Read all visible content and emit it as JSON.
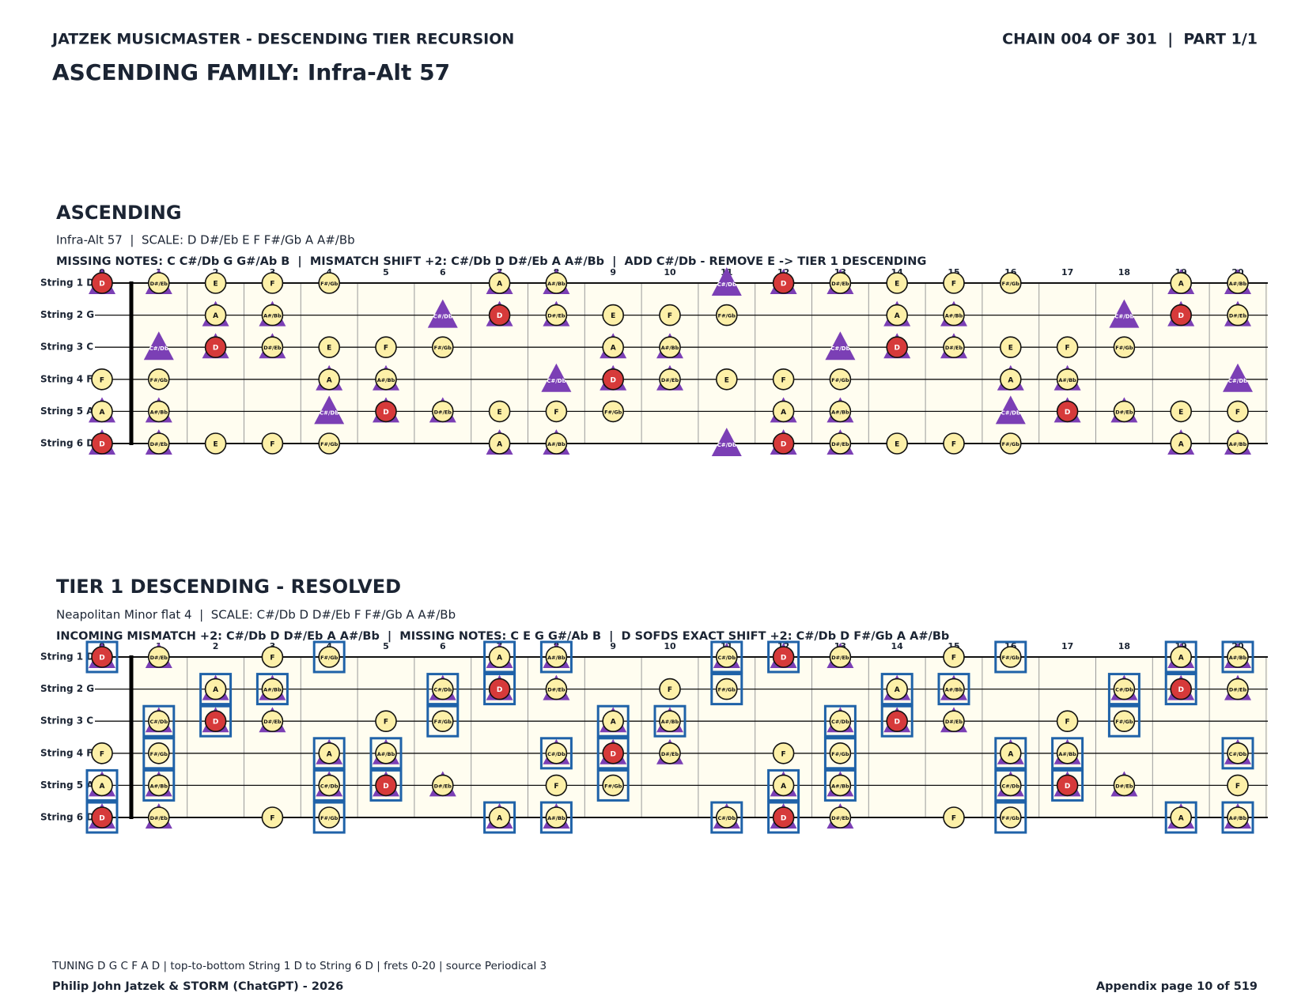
{
  "header": {
    "left": "JATZEK MUSICMASTER - DESCENDING TIER RECURSION",
    "right": "CHAIN 004 OF 301  |  PART 1/1",
    "title": "ASCENDING FAMILY: Infra-Alt 57"
  },
  "panels": [
    {
      "title": "ASCENDING",
      "subtitle": "Infra-Alt 57  |  SCALE: D D#/Eb E F F#/Gb A A#/Bb",
      "info": "MISSING NOTES: C C#/Db G G#/Ab B  |  MISMATCH SHIFT +2: C#/Db D D#/Eb A A#/Bb  |  ADD C#/Db - REMOVE E -> TIER 1 DESCENDING",
      "frets": [
        0,
        1,
        2,
        3,
        4,
        5,
        6,
        7,
        8,
        9,
        10,
        11,
        12,
        13,
        14,
        15,
        16,
        17,
        18,
        19,
        20
      ],
      "strings": [
        {
          "label": "String 1 D",
          "notes": [
            {
              "note": "D",
              "root": true,
              "tri": true
            },
            {
              "note": "D#/Eb",
              "tri": true
            },
            {
              "note": "E"
            },
            {
              "note": "F"
            },
            {
              "note": "F#/Gb"
            },
            null,
            null,
            {
              "note": "A",
              "tri": true
            },
            {
              "note": "A#/Bb",
              "tri": true
            },
            null,
            null,
            {
              "note": "C#/Db",
              "shape": "triangle"
            },
            {
              "note": "D",
              "root": true,
              "tri": true
            },
            {
              "note": "D#/Eb",
              "tri": true
            },
            {
              "note": "E"
            },
            {
              "note": "F"
            },
            {
              "note": "F#/Gb"
            },
            null,
            null,
            {
              "note": "A",
              "tri": true
            },
            {
              "note": "A#/Bb",
              "tri": true
            }
          ]
        },
        {
          "label": "String 2 G",
          "notes": [
            null,
            null,
            {
              "note": "A",
              "tri": true
            },
            {
              "note": "A#/Bb",
              "tri": true
            },
            null,
            null,
            {
              "note": "C#/Db",
              "shape": "triangle"
            },
            {
              "note": "D",
              "root": true,
              "tri": true
            },
            {
              "note": "D#/Eb",
              "tri": true
            },
            {
              "note": "E"
            },
            {
              "note": "F"
            },
            {
              "note": "F#/Gb"
            },
            null,
            null,
            {
              "note": "A",
              "tri": true
            },
            {
              "note": "A#/Bb",
              "tri": true
            },
            null,
            null,
            {
              "note": "C#/Db",
              "shape": "triangle"
            },
            {
              "note": "D",
              "root": true,
              "tri": true
            },
            {
              "note": "D#/Eb",
              "tri": true
            }
          ]
        },
        {
          "label": "String 3 C",
          "notes": [
            null,
            {
              "note": "C#/Db",
              "shape": "triangle"
            },
            {
              "note": "D",
              "root": true,
              "tri": true
            },
            {
              "note": "D#/Eb",
              "tri": true
            },
            {
              "note": "E"
            },
            {
              "note": "F"
            },
            {
              "note": "F#/Gb"
            },
            null,
            null,
            {
              "note": "A",
              "tri": true
            },
            {
              "note": "A#/Bb",
              "tri": true
            },
            null,
            null,
            {
              "note": "C#/Db",
              "shape": "triangle"
            },
            {
              "note": "D",
              "root": true,
              "tri": true
            },
            {
              "note": "D#/Eb",
              "tri": true
            },
            {
              "note": "E"
            },
            {
              "note": "F"
            },
            {
              "note": "F#/Gb"
            },
            null,
            null
          ]
        },
        {
          "label": "String 4 F",
          "notes": [
            {
              "note": "F"
            },
            {
              "note": "F#/Gb"
            },
            null,
            null,
            {
              "note": "A",
              "tri": true
            },
            {
              "note": "A#/Bb",
              "tri": true
            },
            null,
            null,
            {
              "note": "C#/Db",
              "shape": "triangle"
            },
            {
              "note": "D",
              "root": true,
              "tri": true
            },
            {
              "note": "D#/Eb",
              "tri": true
            },
            {
              "note": "E"
            },
            {
              "note": "F"
            },
            {
              "note": "F#/Gb"
            },
            null,
            null,
            {
              "note": "A",
              "tri": true
            },
            {
              "note": "A#/Bb",
              "tri": true
            },
            null,
            null,
            {
              "note": "C#/Db",
              "shape": "triangle"
            }
          ]
        },
        {
          "label": "String 5 A",
          "notes": [
            {
              "note": "A",
              "tri": true
            },
            {
              "note": "A#/Bb",
              "tri": true
            },
            null,
            null,
            {
              "note": "C#/Db",
              "shape": "triangle"
            },
            {
              "note": "D",
              "root": true,
              "tri": true
            },
            {
              "note": "D#/Eb",
              "tri": true
            },
            {
              "note": "E"
            },
            {
              "note": "F"
            },
            {
              "note": "F#/Gb"
            },
            null,
            null,
            {
              "note": "A",
              "tri": true
            },
            {
              "note": "A#/Bb",
              "tri": true
            },
            null,
            null,
            {
              "note": "C#/Db",
              "shape": "triangle"
            },
            {
              "note": "D",
              "root": true,
              "tri": true
            },
            {
              "note": "D#/Eb",
              "tri": true
            },
            {
              "note": "E"
            },
            {
              "note": "F"
            }
          ]
        },
        {
          "label": "String 6 D",
          "notes": [
            {
              "note": "D",
              "root": true,
              "tri": true
            },
            {
              "note": "D#/Eb",
              "tri": true
            },
            {
              "note": "E"
            },
            {
              "note": "F"
            },
            {
              "note": "F#/Gb"
            },
            null,
            null,
            {
              "note": "A",
              "tri": true
            },
            {
              "note": "A#/Bb",
              "tri": true
            },
            null,
            null,
            {
              "note": "C#/Db",
              "shape": "triangle"
            },
            {
              "note": "D",
              "root": true,
              "tri": true
            },
            {
              "note": "D#/Eb",
              "tri": true
            },
            {
              "note": "E"
            },
            {
              "note": "F"
            },
            {
              "note": "F#/Gb"
            },
            null,
            null,
            {
              "note": "A",
              "tri": true
            },
            {
              "note": "A#/Bb",
              "tri": true
            }
          ]
        }
      ]
    },
    {
      "title": "TIER 1 DESCENDING - RESOLVED",
      "subtitle": "Neapolitan Minor flat 4  |  SCALE: C#/Db D D#/Eb F F#/Gb A A#/Bb",
      "info": "INCOMING MISMATCH +2: C#/Db D D#/Eb A A#/Bb  |  MISSING NOTES: C E G G#/Ab B  |  D SOFDS EXACT SHIFT +2: C#/Db D F#/Gb A A#/Bb",
      "frets": [
        0,
        1,
        2,
        3,
        4,
        5,
        6,
        7,
        8,
        9,
        10,
        11,
        12,
        13,
        14,
        15,
        16,
        17,
        18,
        19,
        20
      ],
      "strings": [
        {
          "label": "String 1 D",
          "notes": [
            {
              "note": "D",
              "root": true,
              "tri": true,
              "box": true
            },
            {
              "note": "D#/Eb",
              "tri": true
            },
            null,
            {
              "note": "F"
            },
            {
              "note": "F#/Gb",
              "box": true
            },
            null,
            null,
            {
              "note": "A",
              "tri": true,
              "box": true
            },
            {
              "note": "A#/Bb",
              "tri": true,
              "box": true
            },
            null,
            null,
            {
              "note": "C#/Db",
              "tri": true,
              "box": true
            },
            {
              "note": "D",
              "root": true,
              "tri": true,
              "box": true
            },
            {
              "note": "D#/Eb",
              "tri": true
            },
            null,
            {
              "note": "F"
            },
            {
              "note": "F#/Gb",
              "box": true
            },
            null,
            null,
            {
              "note": "A",
              "tri": true,
              "box": true
            },
            {
              "note": "A#/Bb",
              "tri": true,
              "box": true
            }
          ]
        },
        {
          "label": "String 2 G",
          "notes": [
            null,
            null,
            {
              "note": "A",
              "tri": true,
              "box": true
            },
            {
              "note": "A#/Bb",
              "tri": true,
              "box": true
            },
            null,
            null,
            {
              "note": "C#/Db",
              "tri": true,
              "box": true
            },
            {
              "note": "D",
              "root": true,
              "tri": true,
              "box": true
            },
            {
              "note": "D#/Eb",
              "tri": true
            },
            null,
            {
              "note": "F"
            },
            {
              "note": "F#/Gb",
              "box": true
            },
            null,
            null,
            {
              "note": "A",
              "tri": true,
              "box": true
            },
            {
              "note": "A#/Bb",
              "tri": true,
              "box": true
            },
            null,
            null,
            {
              "note": "C#/Db",
              "tri": true,
              "box": true
            },
            {
              "note": "D",
              "root": true,
              "tri": true,
              "box": true
            },
            {
              "note": "D#/Eb",
              "tri": true
            }
          ]
        },
        {
          "label": "String 3 C",
          "notes": [
            null,
            {
              "note": "C#/Db",
              "tri": true,
              "box": true
            },
            {
              "note": "D",
              "root": true,
              "tri": true,
              "box": true
            },
            {
              "note": "D#/Eb",
              "tri": true
            },
            null,
            {
              "note": "F"
            },
            {
              "note": "F#/Gb",
              "box": true
            },
            null,
            null,
            {
              "note": "A",
              "tri": true,
              "box": true
            },
            {
              "note": "A#/Bb",
              "tri": true,
              "box": true
            },
            null,
            null,
            {
              "note": "C#/Db",
              "tri": true,
              "box": true
            },
            {
              "note": "D",
              "root": true,
              "tri": true,
              "box": true
            },
            {
              "note": "D#/Eb",
              "tri": true
            },
            null,
            {
              "note": "F"
            },
            {
              "note": "F#/Gb",
              "box": true
            },
            null,
            null
          ]
        },
        {
          "label": "String 4 F",
          "notes": [
            {
              "note": "F"
            },
            {
              "note": "F#/Gb",
              "box": true
            },
            null,
            null,
            {
              "note": "A",
              "tri": true,
              "box": true
            },
            {
              "note": "A#/Bb",
              "tri": true,
              "box": true
            },
            null,
            null,
            {
              "note": "C#/Db",
              "tri": true,
              "box": true
            },
            {
              "note": "D",
              "root": true,
              "tri": true,
              "box": true
            },
            {
              "note": "D#/Eb",
              "tri": true
            },
            null,
            {
              "note": "F"
            },
            {
              "note": "F#/Gb",
              "box": true
            },
            null,
            null,
            {
              "note": "A",
              "tri": true,
              "box": true
            },
            {
              "note": "A#/Bb",
              "tri": true,
              "box": true
            },
            null,
            null,
            {
              "note": "C#/Db",
              "tri": true,
              "box": true
            }
          ]
        },
        {
          "label": "String 5 A",
          "notes": [
            {
              "note": "A",
              "tri": true,
              "box": true
            },
            {
              "note": "A#/Bb",
              "tri": true,
              "box": true
            },
            null,
            null,
            {
              "note": "C#/Db",
              "tri": true,
              "box": true
            },
            {
              "note": "D",
              "root": true,
              "tri": true,
              "box": true
            },
            {
              "note": "D#/Eb",
              "tri": true
            },
            null,
            {
              "note": "F"
            },
            {
              "note": "F#/Gb",
              "box": true
            },
            null,
            null,
            {
              "note": "A",
              "tri": true,
              "box": true
            },
            {
              "note": "A#/Bb",
              "tri": true,
              "box": true
            },
            null,
            null,
            {
              "note": "C#/Db",
              "tri": true,
              "box": true
            },
            {
              "note": "D",
              "root": true,
              "tri": true,
              "box": true
            },
            {
              "note": "D#/Eb",
              "tri": true
            },
            null,
            {
              "note": "F"
            }
          ]
        },
        {
          "label": "String 6 D",
          "notes": [
            {
              "note": "D",
              "root": true,
              "tri": true,
              "box": true
            },
            {
              "note": "D#/Eb",
              "tri": true
            },
            null,
            {
              "note": "F"
            },
            {
              "note": "F#/Gb",
              "box": true
            },
            null,
            null,
            {
              "note": "A",
              "tri": true,
              "box": true
            },
            {
              "note": "A#/Bb",
              "tri": true,
              "box": true
            },
            null,
            null,
            {
              "note": "C#/Db",
              "tri": true,
              "box": true
            },
            {
              "note": "D",
              "root": true,
              "tri": true,
              "box": true
            },
            {
              "note": "D#/Eb",
              "tri": true
            },
            null,
            {
              "note": "F"
            },
            {
              "note": "F#/Gb",
              "box": true
            },
            null,
            null,
            {
              "note": "A",
              "tri": true,
              "box": true
            },
            {
              "note": "A#/Bb",
              "tri": true,
              "box": true
            }
          ]
        }
      ]
    }
  ],
  "footer": {
    "note": "TUNING D G C F A D | top-to-bottom String 1 D to String 6 D | frets 0-20 | source Periodical 3",
    "credit": "Philip John Jatzek & STORM (ChatGPT) - 2026",
    "page": "Appendix page 10 of 519"
  }
}
